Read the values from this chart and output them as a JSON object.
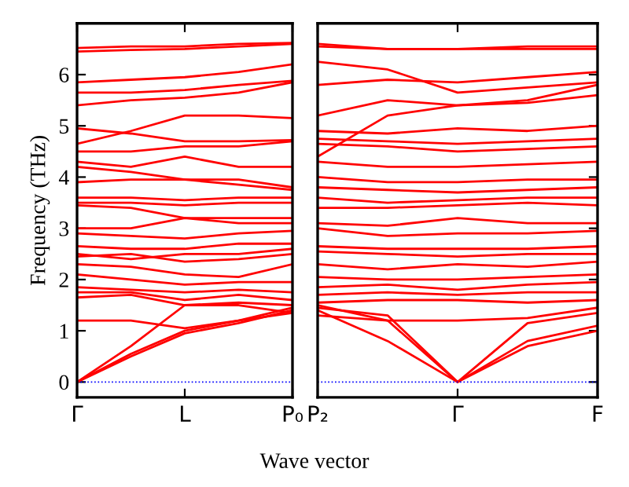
{
  "chart_data": [
    {
      "type": "line",
      "ylabel": "Frequency (THz)",
      "xlabel": "Wave vector",
      "ylim": [
        -0.3,
        7.0
      ],
      "categories": [
        "Γ",
        null,
        "L",
        null,
        "P₀"
      ],
      "yticks": [
        0,
        1,
        2,
        3,
        4,
        5,
        6
      ],
      "grid": false,
      "legend": false,
      "marker": "none",
      "line_style": "solid",
      "ref_lines": [
        {
          "axis": "y",
          "value": 0,
          "color": "#0000ff",
          "line_style": "dotted"
        }
      ],
      "series": [
        {
          "color": "#ff0000",
          "values": [
            0,
            0.5,
            0.95,
            1.15,
            1.4
          ]
        },
        {
          "color": "#ff0000",
          "values": [
            0,
            0.55,
            1.0,
            1.2,
            1.45
          ]
        },
        {
          "color": "#ff0000",
          "values": [
            0,
            0.7,
            1.5,
            1.5,
            1.35
          ]
        },
        {
          "color": "#ff0000",
          "values": [
            1.2,
            1.2,
            1.05,
            1.2,
            1.35
          ]
        },
        {
          "color": "#ff0000",
          "values": [
            1.65,
            1.7,
            1.5,
            1.55,
            1.5
          ]
        },
        {
          "color": "#ff0000",
          "values": [
            1.75,
            1.75,
            1.6,
            1.7,
            1.6
          ]
        },
        {
          "color": "#ff0000",
          "values": [
            1.85,
            1.8,
            1.75,
            1.8,
            1.75
          ]
        },
        {
          "color": "#ff0000",
          "values": [
            2.1,
            2.0,
            1.9,
            1.95,
            1.95
          ]
        },
        {
          "color": "#ff0000",
          "values": [
            2.3,
            2.25,
            2.1,
            2.05,
            2.3
          ]
        },
        {
          "color": "#ff0000",
          "values": [
            2.45,
            2.5,
            2.35,
            2.4,
            2.5
          ]
        },
        {
          "color": "#ff0000",
          "values": [
            2.5,
            2.4,
            2.5,
            2.5,
            2.6
          ]
        },
        {
          "color": "#ff0000",
          "values": [
            2.65,
            2.6,
            2.6,
            2.7,
            2.7
          ]
        },
        {
          "color": "#ff0000",
          "values": [
            2.9,
            2.85,
            2.8,
            2.9,
            2.95
          ]
        },
        {
          "color": "#ff0000",
          "values": [
            3.0,
            3.0,
            3.2,
            3.1,
            3.1
          ]
        },
        {
          "color": "#ff0000",
          "values": [
            3.45,
            3.4,
            3.2,
            3.2,
            3.2
          ]
        },
        {
          "color": "#ff0000",
          "values": [
            3.5,
            3.5,
            3.45,
            3.5,
            3.5
          ]
        },
        {
          "color": "#ff0000",
          "values": [
            3.6,
            3.6,
            3.55,
            3.6,
            3.6
          ]
        },
        {
          "color": "#ff0000",
          "values": [
            3.9,
            3.95,
            3.95,
            3.85,
            3.75
          ]
        },
        {
          "color": "#ff0000",
          "values": [
            4.2,
            4.1,
            3.95,
            3.95,
            3.8
          ]
        },
        {
          "color": "#ff0000",
          "values": [
            4.3,
            4.2,
            4.4,
            4.2,
            4.2
          ]
        },
        {
          "color": "#ff0000",
          "values": [
            4.5,
            4.5,
            4.6,
            4.6,
            4.7
          ]
        },
        {
          "color": "#ff0000",
          "values": [
            4.65,
            4.9,
            5.2,
            5.2,
            5.15
          ]
        },
        {
          "color": "#ff0000",
          "values": [
            4.95,
            4.85,
            4.7,
            4.7,
            4.72
          ]
        },
        {
          "color": "#ff0000",
          "values": [
            5.4,
            5.5,
            5.55,
            5.65,
            5.85
          ]
        },
        {
          "color": "#ff0000",
          "values": [
            5.65,
            5.65,
            5.7,
            5.8,
            5.88
          ]
        },
        {
          "color": "#ff0000",
          "values": [
            5.85,
            5.9,
            5.95,
            6.05,
            6.2
          ]
        },
        {
          "color": "#ff0000",
          "values": [
            6.45,
            6.48,
            6.5,
            6.55,
            6.6
          ]
        },
        {
          "color": "#ff0000",
          "values": [
            6.52,
            6.55,
            6.55,
            6.6,
            6.62
          ]
        }
      ]
    },
    {
      "type": "line",
      "ylim": [
        -0.3,
        7.0
      ],
      "tick_labels": "x",
      "categories": [
        "P₂",
        null,
        "Γ",
        null,
        "F"
      ],
      "yticks": [
        0,
        1,
        2,
        3,
        4,
        5,
        6
      ],
      "grid": false,
      "legend": false,
      "marker": "none",
      "line_style": "solid",
      "ref_lines": [
        {
          "axis": "y",
          "value": 0,
          "color": "#0000ff",
          "line_style": "dotted"
        }
      ],
      "series": [
        {
          "color": "#ff0000",
          "values": [
            1.4,
            0.8,
            0,
            0.7,
            1.0
          ]
        },
        {
          "color": "#ff0000",
          "values": [
            1.5,
            1.2,
            0,
            0.8,
            1.1
          ]
        },
        {
          "color": "#ff0000",
          "values": [
            1.45,
            1.3,
            0,
            1.15,
            1.35
          ]
        },
        {
          "color": "#ff0000",
          "values": [
            1.3,
            1.2,
            1.2,
            1.25,
            1.45
          ]
        },
        {
          "color": "#ff0000",
          "values": [
            1.55,
            1.6,
            1.6,
            1.55,
            1.6
          ]
        },
        {
          "color": "#ff0000",
          "values": [
            1.7,
            1.75,
            1.7,
            1.75,
            1.75
          ]
        },
        {
          "color": "#ff0000",
          "values": [
            1.85,
            1.9,
            1.8,
            1.9,
            1.95
          ]
        },
        {
          "color": "#ff0000",
          "values": [
            2.05,
            2.0,
            2.0,
            2.05,
            2.1
          ]
        },
        {
          "color": "#ff0000",
          "values": [
            2.3,
            2.2,
            2.3,
            2.25,
            2.35
          ]
        },
        {
          "color": "#ff0000",
          "values": [
            2.55,
            2.5,
            2.45,
            2.5,
            2.5
          ]
        },
        {
          "color": "#ff0000",
          "values": [
            2.65,
            2.6,
            2.6,
            2.6,
            2.65
          ]
        },
        {
          "color": "#ff0000",
          "values": [
            3.0,
            2.85,
            2.9,
            2.9,
            2.95
          ]
        },
        {
          "color": "#ff0000",
          "values": [
            3.1,
            3.05,
            3.2,
            3.1,
            3.1
          ]
        },
        {
          "color": "#ff0000",
          "values": [
            3.4,
            3.4,
            3.45,
            3.5,
            3.45
          ]
        },
        {
          "color": "#ff0000",
          "values": [
            3.6,
            3.5,
            3.55,
            3.6,
            3.6
          ]
        },
        {
          "color": "#ff0000",
          "values": [
            3.8,
            3.75,
            3.7,
            3.75,
            3.8
          ]
        },
        {
          "color": "#ff0000",
          "values": [
            4.0,
            3.9,
            3.9,
            3.95,
            3.95
          ]
        },
        {
          "color": "#ff0000",
          "values": [
            4.3,
            4.2,
            4.2,
            4.25,
            4.3
          ]
        },
        {
          "color": "#ff0000",
          "values": [
            4.65,
            4.6,
            4.5,
            4.55,
            4.6
          ]
        },
        {
          "color": "#ff0000",
          "values": [
            4.75,
            4.7,
            4.65,
            4.7,
            4.75
          ]
        },
        {
          "color": "#ff0000",
          "values": [
            4.9,
            4.85,
            4.95,
            4.9,
            5.0
          ]
        },
        {
          "color": "#ff0000",
          "values": [
            4.4,
            5.2,
            5.4,
            5.45,
            5.6
          ]
        },
        {
          "color": "#ff0000",
          "values": [
            5.2,
            5.5,
            5.4,
            5.5,
            5.8
          ]
        },
        {
          "color": "#ff0000",
          "values": [
            5.8,
            5.9,
            5.85,
            5.95,
            6.05
          ]
        },
        {
          "color": "#ff0000",
          "values": [
            6.25,
            6.1,
            5.65,
            5.75,
            5.85
          ]
        },
        {
          "color": "#ff0000",
          "values": [
            6.55,
            6.5,
            6.5,
            6.5,
            6.5
          ]
        },
        {
          "color": "#ff0000",
          "values": [
            6.6,
            6.5,
            6.5,
            6.55,
            6.55
          ]
        }
      ]
    }
  ]
}
